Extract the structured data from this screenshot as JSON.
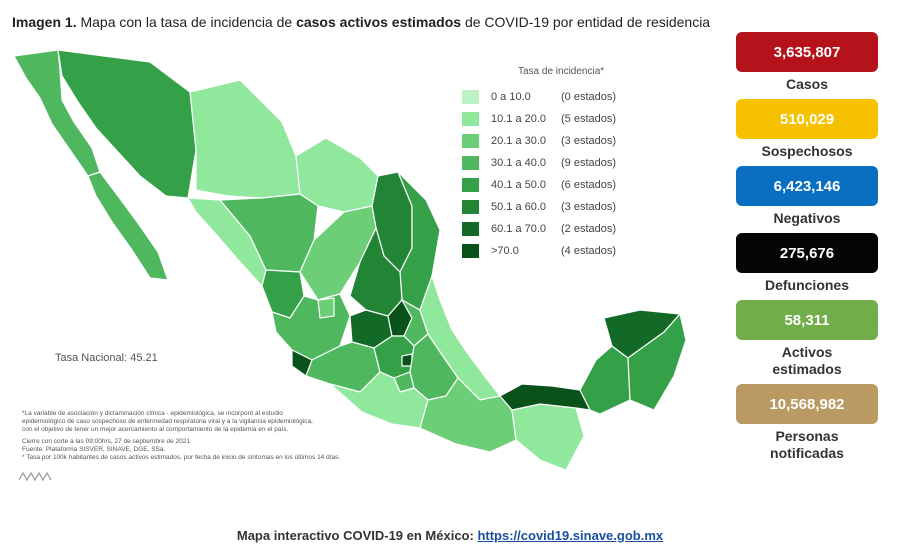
{
  "header": {
    "prefix": "Imagen 1.",
    "text1": " Mapa con la tasa de incidencia de ",
    "bold": "casos activos estimados",
    "text2": " de COVID-19 por entidad de residencia"
  },
  "legend": {
    "title": "Tasa de incidencia*",
    "items": [
      {
        "range": "0  a  10.0",
        "count": "(0 estados)",
        "color": "#bdf3c4"
      },
      {
        "range": "10.1 a  20.0",
        "count": "(5 estados)",
        "color": "#8fe89c"
      },
      {
        "range": "20.1 a  30.0",
        "count": "(3 estados)",
        "color": "#6ccf78"
      },
      {
        "range": "30.1 a  40.0",
        "count": "(9 estados)",
        "color": "#4fb85e"
      },
      {
        "range": "40.1 a  50.0",
        "count": "(6 estados)",
        "color": "#34a048"
      },
      {
        "range": "50.1 a  60.0",
        "count": "(3 estados)",
        "color": "#218535"
      },
      {
        "range": "60.1 a  70.0",
        "count": "(2 estados)",
        "color": "#126a26"
      },
      {
        "range": ">70.0",
        "count": "(4 estados)",
        "color": "#09521a"
      }
    ]
  },
  "tasa_nacional": "Tasa Nacional: 45.21",
  "notes": [
    "*La variable de asociación y dictaminación clínica - epidemiológica, se incorporó al estudio",
    "epidemiológico de caso sospechoso de enfermedad respiratoria viral y a la vigilancia epidemiológica,",
    "con el objetivo de tener un mejor acercamiento al comportamiento de la epidemia en el país.",
    "Cierre con corte a las 09:00hrs, 27 de septiembre de 2021",
    "Fuente: Plataforma SISVER, SINAVE, DGE, SSa.",
    "* Tasa por 100k habitantes de casos activos estimados, por fecha de inicio de síntomas en los últimos 14 días."
  ],
  "stats": [
    {
      "value": "3,635,807",
      "label": "Casos",
      "color": "#b5121b"
    },
    {
      "value": "510,029",
      "label": "Sospechosos",
      "color": "#f6c200"
    },
    {
      "value": "6,423,146",
      "label": "Negativos",
      "color": "#0b6fc1"
    },
    {
      "value": "275,676",
      "label": "Defunciones",
      "color": "#050505"
    },
    {
      "value": "58,311",
      "label": "Activos estimados",
      "color": "#72ad4b"
    },
    {
      "value": "10,568,982",
      "label": "Personas notificadas",
      "color": "#b99a63"
    }
  ],
  "footer": {
    "text": "Mapa interactivo COVID-19 en México: ",
    "link": "https://covid19.sinave.gob.mx"
  }
}
